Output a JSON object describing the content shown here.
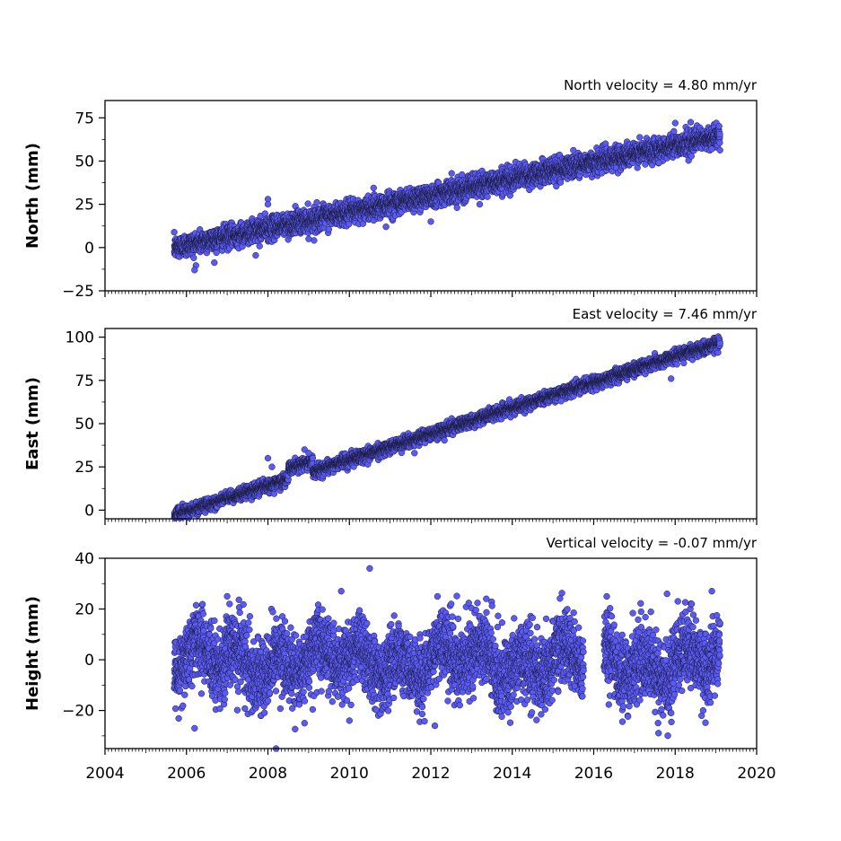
{
  "colors": {
    "marker_fill": "#5a5af5",
    "marker_edge": "#1a1a3a",
    "axes": "#000000",
    "background": "#ffffff"
  },
  "chart_data": [
    {
      "type": "scatter",
      "title": "North velocity = 4.80 mm/yr",
      "xlabel": "",
      "ylabel": "North (mm)",
      "xlim": [
        2004,
        2020
      ],
      "ylim": [
        -25,
        85
      ],
      "x_ticks": [
        2004,
        2006,
        2008,
        2010,
        2012,
        2014,
        2016,
        2018,
        2020
      ],
      "y_ticks": [
        -25,
        0,
        25,
        50,
        75
      ],
      "x_tick_labels_shown": false,
      "series": [
        {
          "model": "linear",
          "start_year": 2005.7,
          "end_year": 2019.1,
          "value_at_start": 0,
          "rate_mm_per_yr": 4.8,
          "scatter_mm": 3.2,
          "points": [
            [
              2006.2,
              -13
            ],
            [
              2007.7,
              -4.5
            ],
            [
              2008.0,
              28
            ],
            [
              2008.0,
              25
            ],
            [
              2009.0,
              5
            ],
            [
              2010.9,
              12
            ],
            [
              2012.0,
              15
            ],
            [
              2013.2,
              25
            ],
            [
              2016.2,
              43
            ],
            [
              2017.6,
              49
            ],
            [
              2018.0,
              72
            ],
            [
              2018.9,
              57
            ]
          ]
        }
      ]
    },
    {
      "type": "scatter",
      "title": "East velocity = 7.46 mm/yr",
      "xlabel": "",
      "ylabel": "East (mm)",
      "xlim": [
        2004,
        2020
      ],
      "ylim": [
        -5,
        105
      ],
      "x_ticks": [
        2004,
        2006,
        2008,
        2010,
        2012,
        2014,
        2016,
        2018,
        2020
      ],
      "y_ticks": [
        0,
        25,
        50,
        75,
        100
      ],
      "x_tick_labels_shown": false,
      "series": [
        {
          "model": "linear",
          "start_year": 2005.7,
          "end_year": 2019.1,
          "value_at_start": -3,
          "rate_mm_per_yr": 7.46,
          "scatter_mm": 1.7,
          "bump": {
            "from": 2008.5,
            "to": 2009.1,
            "offset_mm": 6
          },
          "points": [
            [
              2008.0,
              30
            ],
            [
              2008.1,
              25
            ],
            [
              2008.9,
              35
            ],
            [
              2009.0,
              33
            ],
            [
              2011.6,
              33
            ],
            [
              2015.2,
              63
            ],
            [
              2017.9,
              76
            ]
          ]
        }
      ]
    },
    {
      "type": "scatter",
      "title": "Vertical velocity = -0.07 mm/yr",
      "xlabel": "",
      "ylabel": "Height (mm)",
      "xlim": [
        2004,
        2020
      ],
      "ylim": [
        -35,
        40
      ],
      "x_ticks": [
        2004,
        2006,
        2008,
        2010,
        2012,
        2014,
        2016,
        2018,
        2020
      ],
      "y_ticks": [
        -20,
        0,
        20,
        40
      ],
      "x_tick_labels": [
        "2004",
        "2006",
        "2008",
        "2010",
        "2012",
        "2014",
        "2016",
        "2018",
        "2020"
      ],
      "x_tick_labels_shown": true,
      "series": [
        {
          "model": "seasonal",
          "start_year": 2005.7,
          "end_year": 2019.1,
          "value_at_start": 0,
          "rate_mm_per_yr": -0.07,
          "seasonal_amplitude_mm": 5,
          "scatter_mm": 7,
          "gaps": [
            [
              2015.75,
              2016.25
            ]
          ],
          "points": [
            [
              2010.5,
              36
            ],
            [
              2008.2,
              -35
            ],
            [
              2006.2,
              -27
            ],
            [
              2008.9,
              -25
            ],
            [
              2010.0,
              -24
            ],
            [
              2012.1,
              -26
            ],
            [
              2017.9,
              -21
            ],
            [
              2007.0,
              25
            ],
            [
              2009.8,
              27
            ],
            [
              2012.5,
              22
            ],
            [
              2017.8,
              26
            ],
            [
              2018.9,
              27
            ]
          ]
        }
      ]
    }
  ]
}
